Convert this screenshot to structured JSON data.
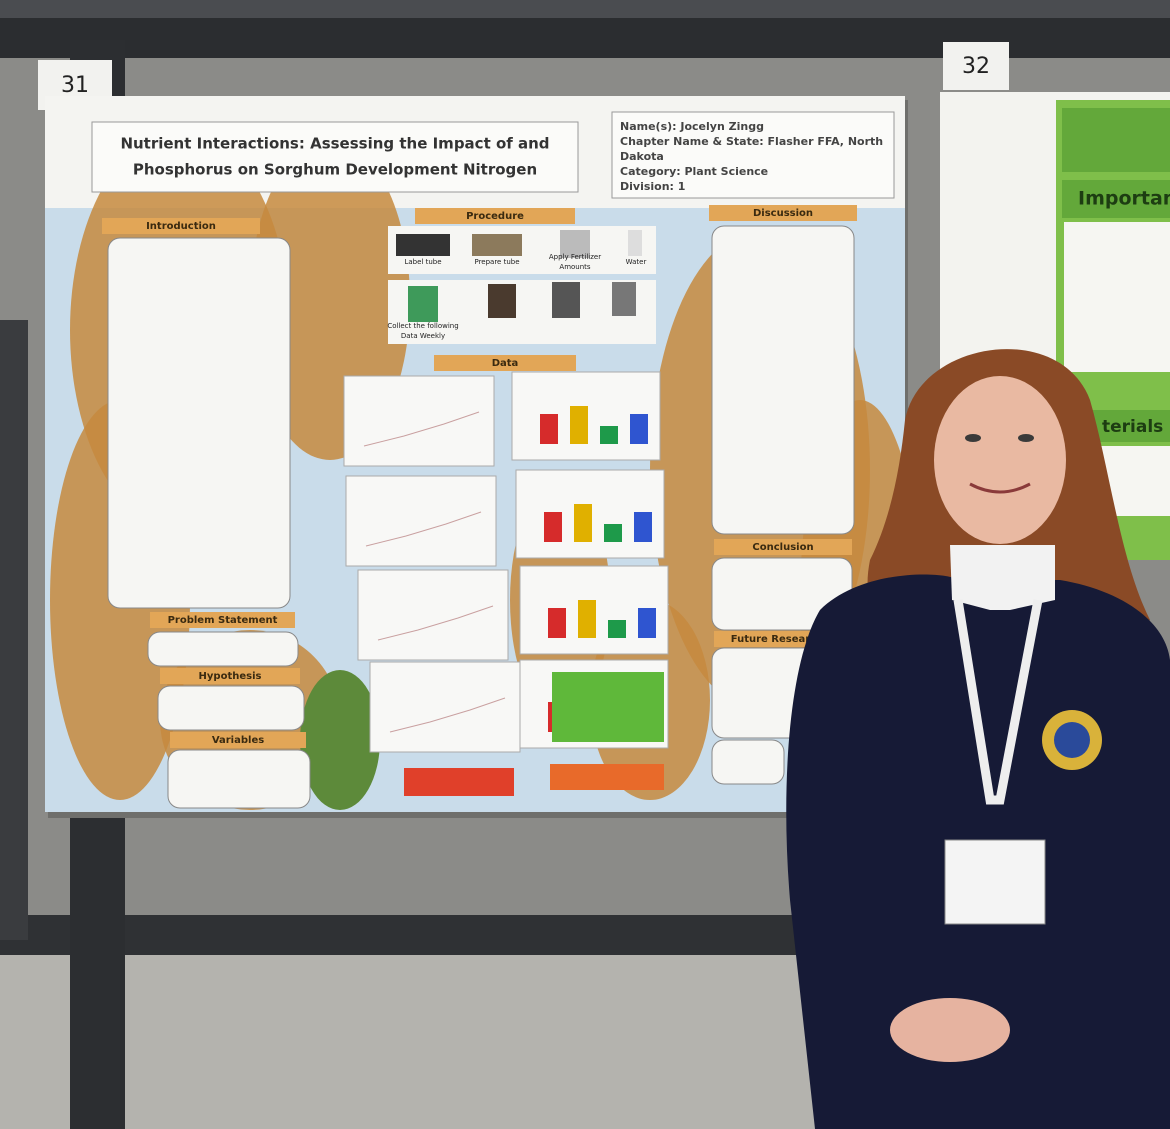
{
  "board_numbers": [
    "31",
    "32"
  ],
  "poster": {
    "title_lines": [
      "Nutrient Interactions: Assessing the Impact of and",
      "Phosphorus on Sorghum Development Nitrogen"
    ],
    "info": [
      "Name(s): Jocelyn Zingg",
      "Chapter Name & State: Flasher FFA, North",
      "Dakota",
      "Category: Plant Science",
      "Division: 1"
    ],
    "sections": [
      "Introduction",
      "Procedure",
      "Discussion",
      "Data",
      "Problem Statement",
      "Hypothesis",
      "Variables",
      "Conclusion",
      "Future Research"
    ],
    "procedure_steps": [
      "Label tube",
      "Prepare tube",
      "Apply Fertilizer",
      "Amounts",
      "Water",
      "Collect the following",
      "Data Weekly"
    ]
  },
  "neighbor_poster": {
    "headings": [
      "Importance",
      "terials"
    ]
  }
}
